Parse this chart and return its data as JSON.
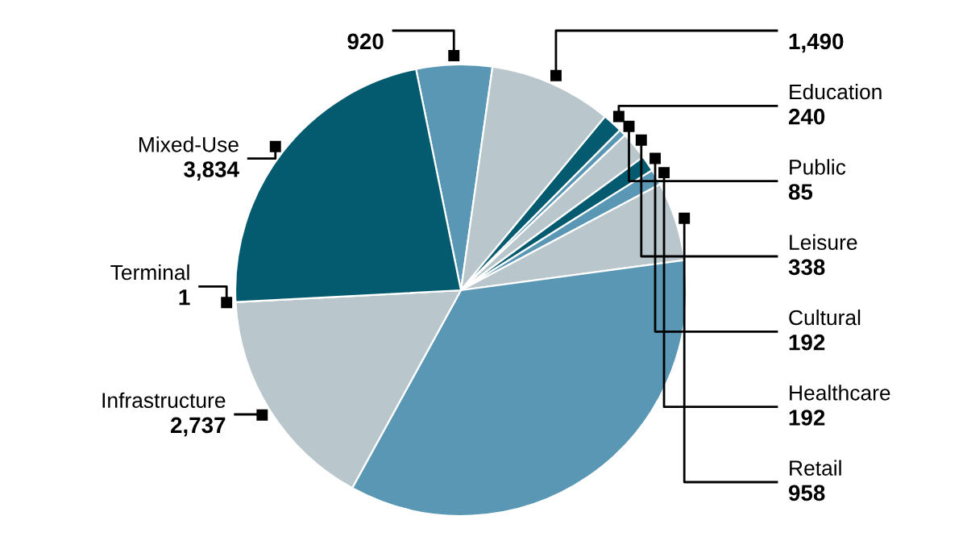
{
  "chart_data": {
    "type": "pie",
    "categories": [
      null,
      null,
      "Education",
      "Public",
      "Leisure",
      "Cultural",
      "Healthcare",
      "Retail",
      null,
      "Infrastructure",
      "Terminal",
      "Mixed-Use"
    ],
    "values": [
      920,
      1490,
      240,
      85,
      338,
      192,
      192,
      958,
      5950,
      2737,
      1,
      3834
    ],
    "value_labels": [
      "920",
      "1,490",
      "240",
      "85",
      "338",
      "192",
      "192",
      "958",
      null,
      "2,737",
      "1",
      "3,834"
    ],
    "colors": [
      "#5a97b5",
      "#b9c7cc",
      "#045a6e",
      "#5a97b5",
      "#b9c7cc",
      "#045a6e",
      "#5a97b5",
      "#b9c7cc",
      "#5a97b5",
      "#b9c7cc",
      "#045a6e",
      "#045a6e"
    ]
  }
}
